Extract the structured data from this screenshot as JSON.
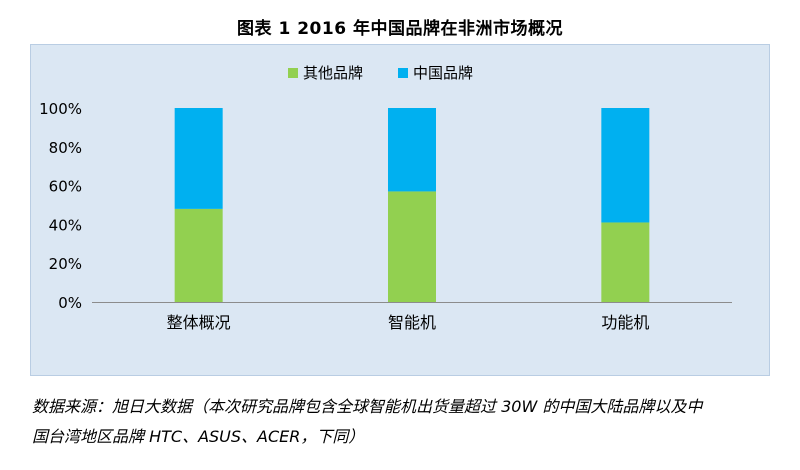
{
  "title": "图表 1    2016 年中国品牌在非洲市场概况",
  "source": {
    "line1": "数据来源：旭日大数据（本次研究品牌包含全球智能机出货量超过 30W 的中国大陆品牌以及中",
    "line2": "国台湾地区品牌 HTC、ASUS、ACER，下同）"
  },
  "chart_data": {
    "type": "bar",
    "stacked": true,
    "percent": true,
    "categories": [
      "整体概况",
      "智能机",
      "功能机"
    ],
    "series": [
      {
        "name": "其他品牌",
        "color": "#92d050",
        "values": [
          48,
          57,
          41
        ]
      },
      {
        "name": "中国品牌",
        "color": "#00b0f0",
        "values": [
          52,
          43,
          59
        ]
      }
    ],
    "yticks": [
      "0%",
      "20%",
      "40%",
      "60%",
      "80%",
      "100%"
    ],
    "ylim": [
      0,
      100
    ],
    "legend_position": "top-center",
    "grid": false
  }
}
